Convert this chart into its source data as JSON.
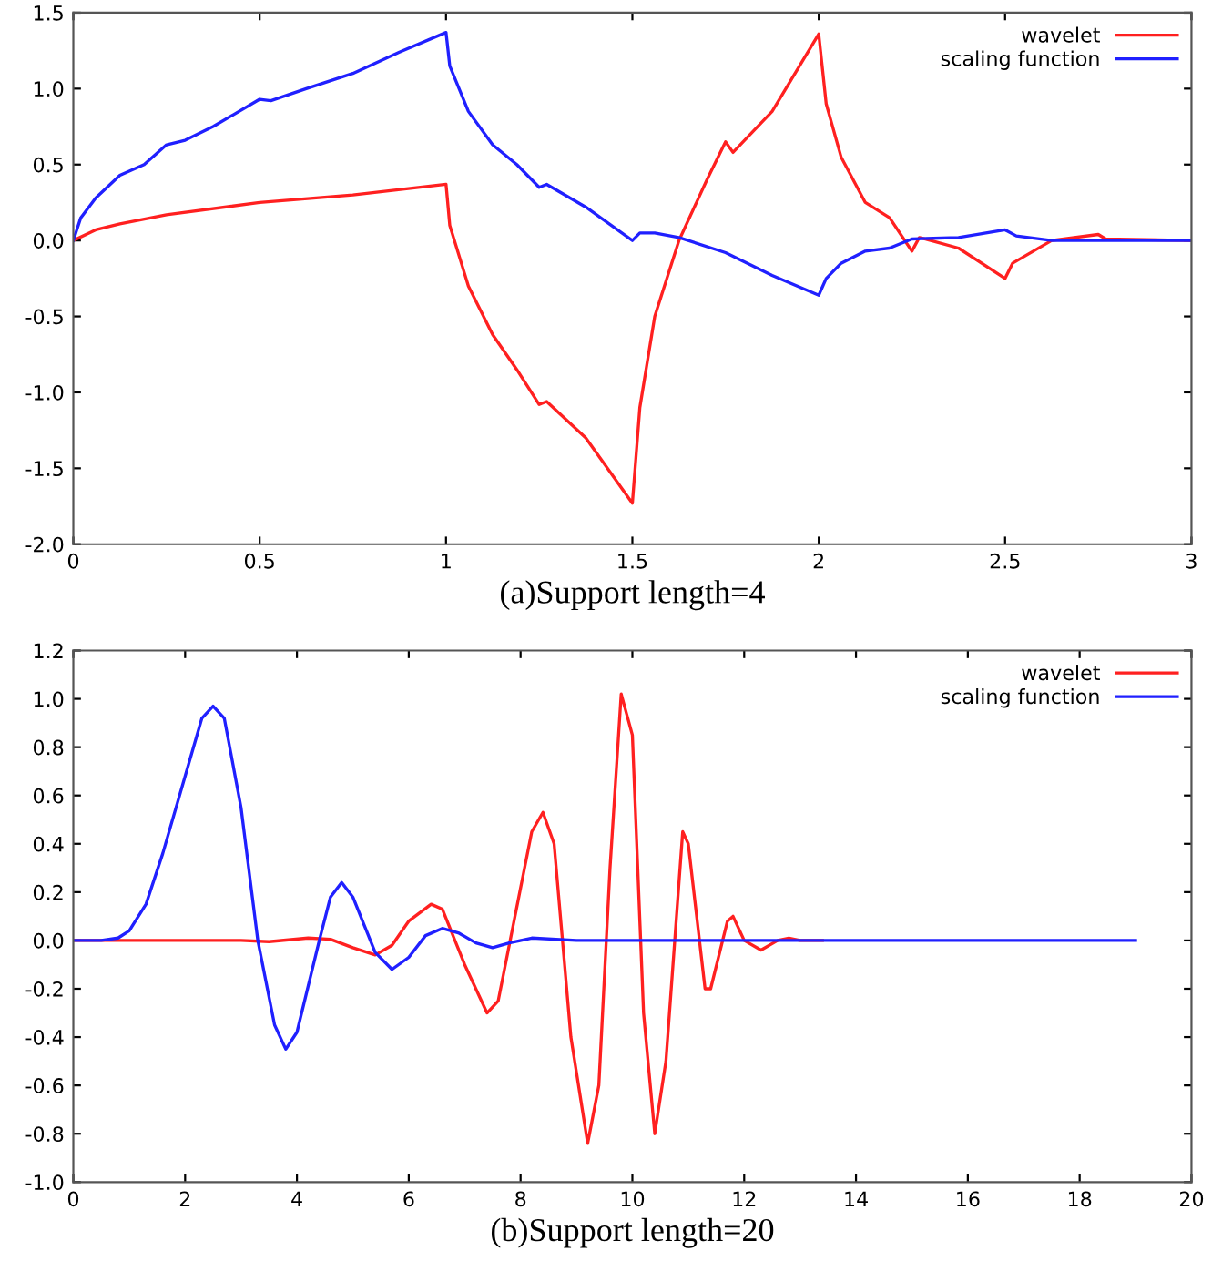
{
  "chart_data": [
    {
      "type": "line",
      "xlabel": "(a)Support length=4",
      "xlim": [
        0,
        3
      ],
      "xticks": [
        0,
        0.5,
        1,
        1.5,
        2,
        2.5,
        3
      ],
      "ylim": [
        -2.0,
        1.5
      ],
      "yticks": [
        {
          "value": -2,
          "label": "-2.0"
        },
        {
          "value": -1.5,
          "label": "-1.5"
        },
        {
          "value": -1,
          "label": "-1.0"
        },
        {
          "value": -0.5,
          "label": "-0.5"
        },
        {
          "value": 0,
          "label": "0.0"
        },
        {
          "value": 0.5,
          "label": "0.5"
        },
        {
          "value": 1,
          "label": "1.0"
        },
        {
          "value": 1.5,
          "label": "1.5"
        }
      ],
      "legend": "top right",
      "grid": false,
      "series": [
        {
          "name": "wavelet",
          "color": "#ff2020",
          "x": [
            0,
            0.06,
            0.125,
            0.25,
            0.5,
            0.75,
            1.0,
            1.01,
            1.06,
            1.125,
            1.19,
            1.25,
            1.27,
            1.375,
            1.5,
            1.52,
            1.56,
            1.625,
            1.7,
            1.75,
            1.77,
            1.875,
            2.0,
            2.02,
            2.06,
            2.125,
            2.19,
            2.25,
            2.27,
            2.375,
            2.5,
            2.52,
            2.625,
            2.75,
            2.77,
            3.0
          ],
          "values": [
            0,
            0.07,
            0.11,
            0.17,
            0.25,
            0.3,
            0.37,
            0.1,
            -0.3,
            -0.62,
            -0.85,
            -1.08,
            -1.06,
            -1.3,
            -1.73,
            -1.1,
            -0.5,
            0.0,
            0.4,
            0.65,
            0.58,
            0.85,
            1.36,
            0.9,
            0.55,
            0.25,
            0.15,
            -0.07,
            0.02,
            -0.05,
            -0.25,
            -0.15,
            0.0,
            0.04,
            0.01,
            0.0
          ]
        },
        {
          "name": "scaling function",
          "color": "#2020ff",
          "x": [
            0,
            0.02,
            0.06,
            0.125,
            0.19,
            0.25,
            0.3,
            0.375,
            0.5,
            0.53,
            0.625,
            0.75,
            0.875,
            1.0,
            1.01,
            1.06,
            1.125,
            1.19,
            1.25,
            1.27,
            1.375,
            1.5,
            1.52,
            1.56,
            1.625,
            1.75,
            1.875,
            2.0,
            2.02,
            2.06,
            2.125,
            2.19,
            2.25,
            2.375,
            2.5,
            2.53,
            2.625,
            2.75,
            3.0
          ],
          "values": [
            0,
            0.15,
            0.28,
            0.43,
            0.5,
            0.63,
            0.66,
            0.75,
            0.93,
            0.92,
            1.0,
            1.1,
            1.24,
            1.37,
            1.15,
            0.85,
            0.63,
            0.5,
            0.35,
            0.37,
            0.22,
            0.0,
            0.05,
            0.05,
            0.02,
            -0.08,
            -0.23,
            -0.36,
            -0.25,
            -0.15,
            -0.07,
            -0.05,
            0.01,
            0.02,
            0.07,
            0.03,
            0.0,
            0.0,
            0.0
          ]
        }
      ]
    },
    {
      "type": "line",
      "xlabel": "(b)Support length=20",
      "xlim": [
        0,
        20
      ],
      "xticks": [
        0,
        2,
        4,
        6,
        8,
        10,
        12,
        14,
        16,
        18,
        20
      ],
      "ylim": [
        -1.0,
        1.2
      ],
      "yticks": [
        {
          "value": -1,
          "label": "-1.0"
        },
        {
          "value": -0.8,
          "label": "-0.8"
        },
        {
          "value": -0.6,
          "label": "-0.6"
        },
        {
          "value": -0.4,
          "label": "-0.4"
        },
        {
          "value": -0.2,
          "label": "-0.2"
        },
        {
          "value": 0,
          "label": "0.0"
        },
        {
          "value": 0.2,
          "label": "0.2"
        },
        {
          "value": 0.4,
          "label": "0.4"
        },
        {
          "value": 0.6,
          "label": "0.6"
        },
        {
          "value": 0.8,
          "label": "0.8"
        },
        {
          "value": 1,
          "label": "1.0"
        },
        {
          "value": 1.2,
          "label": "1.2"
        }
      ],
      "legend": "top right",
      "grid": false,
      "series": [
        {
          "name": "wavelet",
          "color": "#ff2020",
          "x": [
            0,
            2,
            3,
            3.5,
            4.2,
            4.6,
            5.0,
            5.4,
            5.7,
            6.0,
            6.4,
            6.6,
            7.0,
            7.4,
            7.6,
            7.9,
            8.2,
            8.4,
            8.6,
            8.9,
            9.2,
            9.4,
            9.6,
            9.8,
            10.0,
            10.2,
            10.4,
            10.6,
            10.9,
            11.0,
            11.3,
            11.4,
            11.7,
            11.8,
            12.0,
            12.3,
            12.6,
            12.8,
            13.0,
            13.4
          ],
          "values": [
            0,
            0.0,
            0.0,
            -0.005,
            0.01,
            0.005,
            -0.03,
            -0.06,
            -0.02,
            0.08,
            0.15,
            0.13,
            -0.1,
            -0.3,
            -0.25,
            0.1,
            0.45,
            0.53,
            0.4,
            -0.4,
            -0.84,
            -0.6,
            0.3,
            1.02,
            0.85,
            -0.3,
            -0.8,
            -0.5,
            0.45,
            0.4,
            -0.2,
            -0.2,
            0.08,
            0.1,
            0.0,
            -0.04,
            0.0,
            0.01,
            0.0,
            0.0
          ]
        },
        {
          "name": "scaling function",
          "color": "#2020ff",
          "x": [
            0,
            0.5,
            0.8,
            1.0,
            1.3,
            1.6,
            2.0,
            2.3,
            2.5,
            2.7,
            3.0,
            3.3,
            3.6,
            3.8,
            4.0,
            4.4,
            4.6,
            4.8,
            5.0,
            5.4,
            5.7,
            6.0,
            6.3,
            6.6,
            6.9,
            7.2,
            7.5,
            7.8,
            8.2,
            9,
            19
          ],
          "values": [
            0,
            0,
            0.01,
            0.04,
            0.15,
            0.36,
            0.68,
            0.92,
            0.97,
            0.92,
            0.55,
            0.0,
            -0.35,
            -0.45,
            -0.38,
            0.0,
            0.18,
            0.24,
            0.18,
            -0.05,
            -0.12,
            -0.07,
            0.02,
            0.05,
            0.03,
            -0.01,
            -0.03,
            -0.01,
            0.01,
            0.0,
            0.0
          ]
        }
      ]
    }
  ]
}
